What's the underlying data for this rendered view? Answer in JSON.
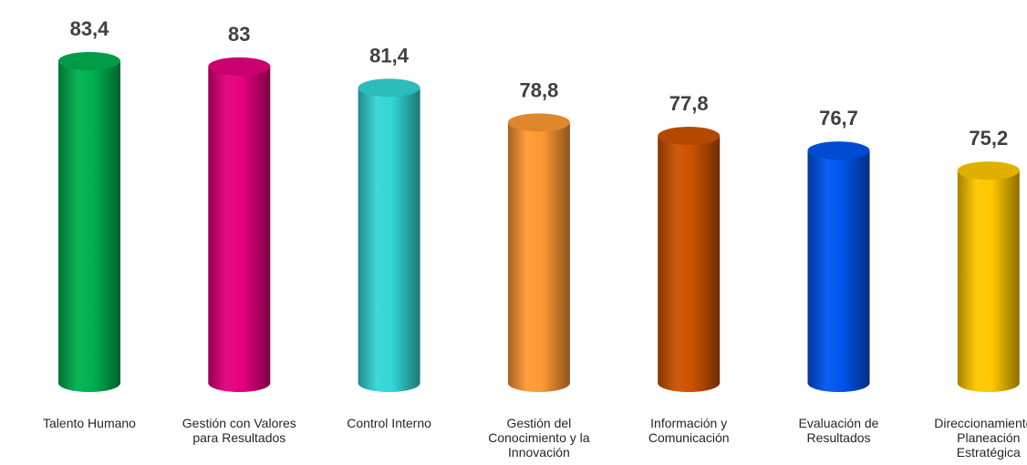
{
  "chart_data": {
    "type": "bar",
    "title": "",
    "xlabel": "",
    "ylabel": "",
    "categories": [
      "Talento Humano",
      "Gestión con Valores\npara Resultados",
      "Control Interno",
      "Gestión del\nConocimiento y la\nInnovación",
      "Información y\nComunicación",
      "Evaluación de\nResultados",
      "Direccionamiento y\nPlaneación\nEstratégica"
    ],
    "values": [
      83.4,
      83,
      81.4,
      78.8,
      77.8,
      76.7,
      75.2
    ],
    "value_labels": [
      "83,4",
      "83",
      "81,4",
      "78,8",
      "77,8",
      "76,7",
      "75,2"
    ],
    "colors": [
      "#00b050",
      "#e6007e",
      "#33d6d6",
      "#ff9933",
      "#cc5200",
      "#0055ee",
      "#ffc800"
    ],
    "grid": false,
    "legend": "none"
  }
}
